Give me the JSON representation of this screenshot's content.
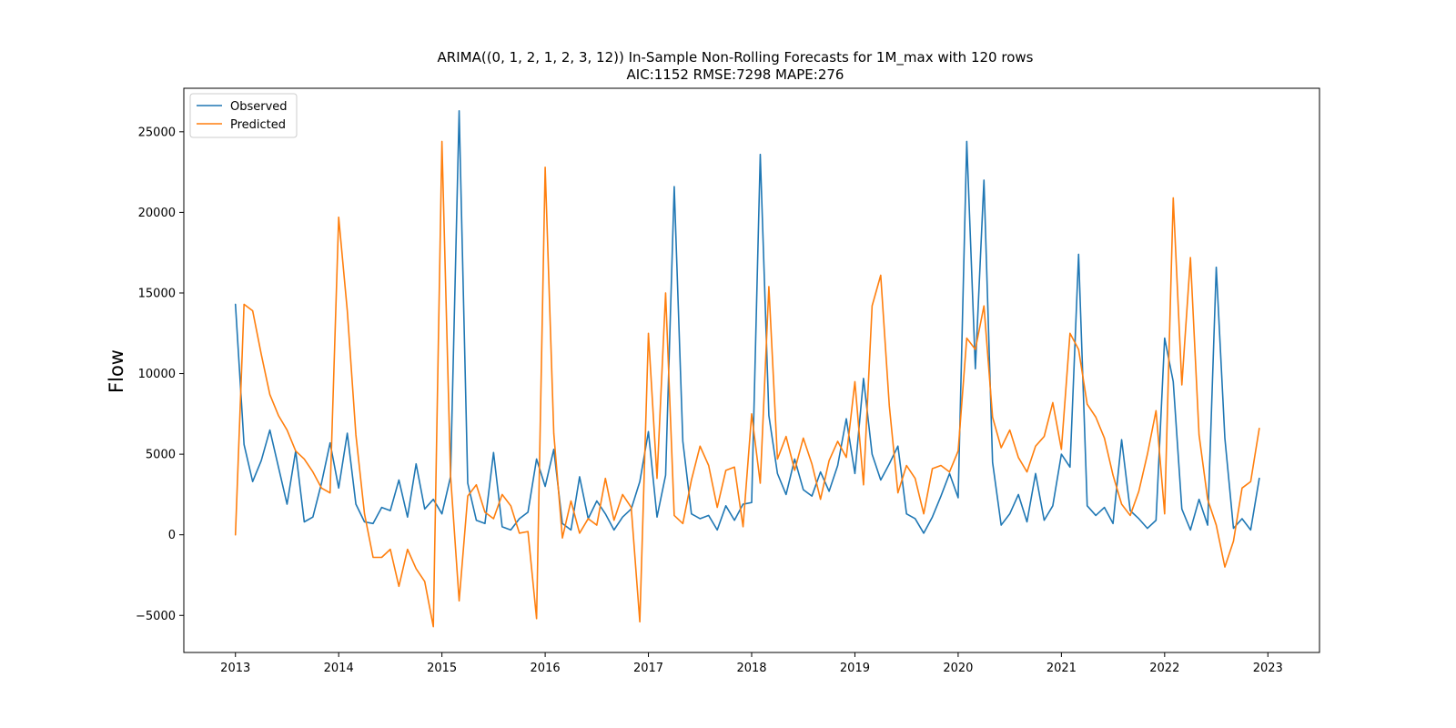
{
  "chart_data": {
    "type": "line",
    "title": "ARIMA((0, 1, 2, 1, 2, 3, 12)) In-Sample Non-Rolling Forecasts for 1M_max with 120 rows",
    "subtitle": "AIC:1152 RMSE:7298 MAPE:276",
    "xlabel": "",
    "ylabel": "Flow",
    "x_ticks": [
      "2013",
      "2014",
      "2015",
      "2016",
      "2017",
      "2018",
      "2019",
      "2020",
      "2021",
      "2022",
      "2023"
    ],
    "y_ticks": [
      -5000,
      0,
      5000,
      10000,
      15000,
      20000,
      25000
    ],
    "y_tick_labels": [
      "−5000",
      "0",
      "5000",
      "10000",
      "15000",
      "20000",
      "25000"
    ],
    "xlim": [
      "2012-07",
      "2023-07"
    ],
    "ylim": [
      -7300,
      27700
    ],
    "x_start": "2013-01",
    "legend_position": "upper-left",
    "grid": false,
    "series": [
      {
        "name": "Observed",
        "color": "#1f77b4",
        "values": [
          14300,
          5600,
          3300,
          4600,
          6500,
          4200,
          1900,
          5200,
          800,
          1100,
          3200,
          5700,
          2900,
          6300,
          1900,
          800,
          700,
          1700,
          1500,
          3400,
          1100,
          4400,
          1600,
          2200,
          1300,
          3600,
          26300,
          3200,
          900,
          700,
          5100,
          500,
          300,
          1000,
          1400,
          4700,
          3000,
          5300,
          700,
          300,
          3600,
          1000,
          2100,
          1300,
          300,
          1100,
          1600,
          3300,
          6400,
          1100,
          3700,
          21600,
          5800,
          1300,
          1000,
          1200,
          300,
          1800,
          900,
          1900,
          2000,
          23600,
          7400,
          3800,
          2500,
          4700,
          2800,
          2400,
          3900,
          2700,
          4300,
          7200,
          3800,
          9700,
          5000,
          3400,
          4400,
          5500,
          1300,
          1000,
          100,
          1100,
          2400,
          3800,
          2300,
          24400,
          10300,
          22000,
          4500,
          600,
          1300,
          2500,
          800,
          3800,
          900,
          1800,
          5000,
          4200,
          17400,
          1800,
          1200,
          1700,
          700,
          5900,
          1500,
          1000,
          400,
          900,
          12200,
          9500,
          1600,
          300,
          2200,
          600,
          16600,
          6000,
          400,
          1000,
          300,
          3500
        ]
      },
      {
        "name": "Predicted",
        "color": "#ff7f0e",
        "values": [
          0,
          14300,
          13900,
          11200,
          8700,
          7400,
          6500,
          5200,
          4700,
          3900,
          2900,
          2600,
          19700,
          13900,
          6200,
          1300,
          -1400,
          -1400,
          -900,
          -3200,
          -900,
          -2100,
          -2900,
          -5700,
          24400,
          3700,
          -4100,
          2400,
          3100,
          1400,
          1000,
          2500,
          1800,
          100,
          200,
          -5200,
          22800,
          6300,
          -200,
          2100,
          100,
          1000,
          600,
          3500,
          900,
          2500,
          1700,
          -5400,
          12500,
          3500,
          15000,
          1200,
          700,
          3400,
          5500,
          4300,
          1700,
          4000,
          4200,
          500,
          7500,
          3200,
          15400,
          4700,
          6100,
          4000,
          6000,
          4400,
          2200,
          4600,
          5800,
          4800,
          9500,
          3100,
          14200,
          16100,
          8000,
          2600,
          4300,
          3500,
          1300,
          4100,
          4300,
          3900,
          5200,
          12200,
          11500,
          14200,
          7300,
          5400,
          6500,
          4800,
          3900,
          5500,
          6100,
          8200,
          5300,
          12500,
          11500,
          8100,
          7300,
          6000,
          3700,
          1900,
          1200,
          2700,
          5000,
          7700,
          1300,
          20900,
          9300,
          17200,
          6200,
          2200,
          600,
          -2000,
          -400,
          2900,
          3300,
          6600
        ]
      }
    ]
  }
}
